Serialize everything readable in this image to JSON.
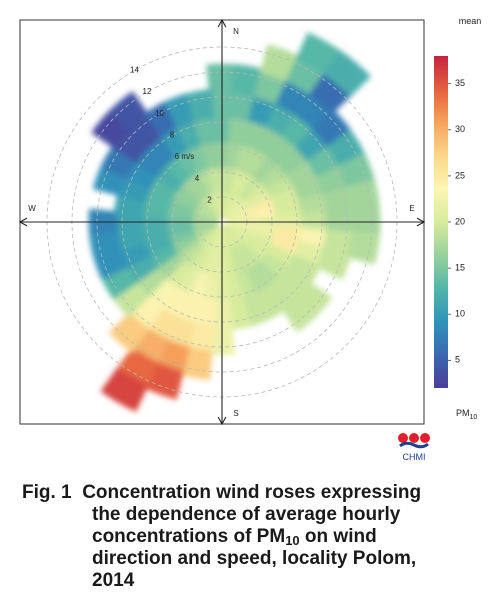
{
  "chart_data": {
    "type": "polar-heatmap",
    "directions": {
      "north": "N",
      "east": "E",
      "south": "S",
      "west": "W"
    },
    "radial_axis": {
      "ticks": [
        "2",
        "4",
        "6 m/s",
        "8",
        "10",
        "12",
        "14"
      ],
      "values": [
        2,
        4,
        6,
        8,
        10,
        12,
        14
      ],
      "max": 16
    },
    "colorbar": {
      "title": "mean",
      "label_main": "PM",
      "label_sub": "10",
      "ticks": [
        "5",
        "10",
        "15",
        "20",
        "25",
        "30",
        "35"
      ],
      "tick_values": [
        5,
        10,
        15,
        20,
        25,
        30,
        35
      ],
      "range": [
        2,
        38
      ],
      "colors": [
        "#4b3e98",
        "#3a68b0",
        "#2f93b9",
        "#53b6a8",
        "#98d19b",
        "#d7eb9c",
        "#fcf6b4",
        "#fbd68a",
        "#f6a35c",
        "#e5603f",
        "#c4243e"
      ]
    },
    "cells": [
      {
        "dir": 0,
        "r": 1.5,
        "v": 20
      },
      {
        "dir": 0,
        "r": 3.5,
        "v": 19
      },
      {
        "dir": 0,
        "r": 5.5,
        "v": 16
      },
      {
        "dir": 0,
        "r": 7.5,
        "v": 14
      },
      {
        "dir": 0,
        "r": 9.5,
        "v": 14
      },
      {
        "dir": 0,
        "r": 11.5,
        "v": 14
      },
      {
        "dir": 10,
        "r": 1.5,
        "v": 20
      },
      {
        "dir": 10,
        "r": 3.5,
        "v": 19
      },
      {
        "dir": 10,
        "r": 5.5,
        "v": 17
      },
      {
        "dir": 10,
        "r": 7.5,
        "v": 16
      },
      {
        "dir": 10,
        "r": 9.5,
        "v": 14
      },
      {
        "dir": 10,
        "r": 11.5,
        "v": 13
      },
      {
        "dir": 20,
        "r": 1.5,
        "v": 20
      },
      {
        "dir": 20,
        "r": 3.5,
        "v": 20
      },
      {
        "dir": 20,
        "r": 5.5,
        "v": 18
      },
      {
        "dir": 20,
        "r": 7.5,
        "v": 16
      },
      {
        "dir": 20,
        "r": 9.5,
        "v": 10
      },
      {
        "dir": 20,
        "r": 11.5,
        "v": 15
      },
      {
        "dir": 20,
        "r": 13.5,
        "v": 18
      },
      {
        "dir": 30,
        "r": 1.5,
        "v": 21
      },
      {
        "dir": 30,
        "r": 3.5,
        "v": 20
      },
      {
        "dir": 30,
        "r": 5.5,
        "v": 18
      },
      {
        "dir": 30,
        "r": 7.5,
        "v": 16
      },
      {
        "dir": 30,
        "r": 9.5,
        "v": 12
      },
      {
        "dir": 30,
        "r": 11.5,
        "v": 8
      },
      {
        "dir": 30,
        "r": 13.5,
        "v": 14
      },
      {
        "dir": 30,
        "r": 15.5,
        "v": 13
      },
      {
        "dir": 40,
        "r": 1.5,
        "v": 21
      },
      {
        "dir": 40,
        "r": 3.5,
        "v": 19
      },
      {
        "dir": 40,
        "r": 5.5,
        "v": 17
      },
      {
        "dir": 40,
        "r": 7.5,
        "v": 16
      },
      {
        "dir": 40,
        "r": 9.5,
        "v": 13
      },
      {
        "dir": 40,
        "r": 11.5,
        "v": 8
      },
      {
        "dir": 40,
        "r": 13.5,
        "v": 6
      },
      {
        "dir": 40,
        "r": 15.5,
        "v": 12
      },
      {
        "dir": 50,
        "r": 1.5,
        "v": 21
      },
      {
        "dir": 50,
        "r": 3.5,
        "v": 20
      },
      {
        "dir": 50,
        "r": 5.5,
        "v": 18
      },
      {
        "dir": 50,
        "r": 7.5,
        "v": 16
      },
      {
        "dir": 50,
        "r": 9.5,
        "v": 11
      },
      {
        "dir": 50,
        "r": 11.5,
        "v": 7
      },
      {
        "dir": 60,
        "r": 1.5,
        "v": 22
      },
      {
        "dir": 60,
        "r": 3.5,
        "v": 21
      },
      {
        "dir": 60,
        "r": 5.5,
        "v": 19
      },
      {
        "dir": 60,
        "r": 7.5,
        "v": 17
      },
      {
        "dir": 60,
        "r": 9.5,
        "v": 14
      },
      {
        "dir": 60,
        "r": 11.5,
        "v": 12
      },
      {
        "dir": 70,
        "r": 1.5,
        "v": 22
      },
      {
        "dir": 70,
        "r": 3.5,
        "v": 25
      },
      {
        "dir": 70,
        "r": 5.5,
        "v": 20
      },
      {
        "dir": 70,
        "r": 7.5,
        "v": 17
      },
      {
        "dir": 70,
        "r": 9.5,
        "v": 16
      },
      {
        "dir": 70,
        "r": 11.5,
        "v": 15
      },
      {
        "dir": 80,
        "r": 1.5,
        "v": 22
      },
      {
        "dir": 80,
        "r": 3.5,
        "v": 24
      },
      {
        "dir": 80,
        "r": 5.5,
        "v": 20
      },
      {
        "dir": 80,
        "r": 7.5,
        "v": 18
      },
      {
        "dir": 80,
        "r": 9.5,
        "v": 17
      },
      {
        "dir": 80,
        "r": 11.5,
        "v": 17
      },
      {
        "dir": 90,
        "r": 1.5,
        "v": 22
      },
      {
        "dir": 90,
        "r": 3.5,
        "v": 21
      },
      {
        "dir": 90,
        "r": 5.5,
        "v": 21
      },
      {
        "dir": 90,
        "r": 7.5,
        "v": 19
      },
      {
        "dir": 90,
        "r": 9.5,
        "v": 17
      },
      {
        "dir": 90,
        "r": 11.5,
        "v": 17
      },
      {
        "dir": 100,
        "r": 1.5,
        "v": 22
      },
      {
        "dir": 100,
        "r": 3.5,
        "v": 22
      },
      {
        "dir": 100,
        "r": 5.5,
        "v": 25
      },
      {
        "dir": 100,
        "r": 7.5,
        "v": 23
      },
      {
        "dir": 100,
        "r": 9.5,
        "v": 19
      },
      {
        "dir": 100,
        "r": 11.5,
        "v": 18
      },
      {
        "dir": 110,
        "r": 1.5,
        "v": 21
      },
      {
        "dir": 110,
        "r": 3.5,
        "v": 21
      },
      {
        "dir": 110,
        "r": 5.5,
        "v": 25
      },
      {
        "dir": 110,
        "r": 7.5,
        "v": 21
      },
      {
        "dir": 110,
        "r": 9.5,
        "v": 19
      },
      {
        "dir": 120,
        "r": 1.5,
        "v": 21
      },
      {
        "dir": 120,
        "r": 3.5,
        "v": 20
      },
      {
        "dir": 120,
        "r": 5.5,
        "v": 20
      },
      {
        "dir": 120,
        "r": 7.5,
        "v": 19
      },
      {
        "dir": 130,
        "r": 1.5,
        "v": 20
      },
      {
        "dir": 130,
        "r": 3.5,
        "v": 20
      },
      {
        "dir": 130,
        "r": 5.5,
        "v": 19
      },
      {
        "dir": 130,
        "r": 7.5,
        "v": 19
      },
      {
        "dir": 130,
        "r": 9.5,
        "v": 19
      },
      {
        "dir": 140,
        "r": 1.5,
        "v": 20
      },
      {
        "dir": 140,
        "r": 3.5,
        "v": 19
      },
      {
        "dir": 140,
        "r": 5.5,
        "v": 18
      },
      {
        "dir": 140,
        "r": 7.5,
        "v": 19
      },
      {
        "dir": 140,
        "r": 9.5,
        "v": 19
      },
      {
        "dir": 150,
        "r": 1.5,
        "v": 20
      },
      {
        "dir": 150,
        "r": 3.5,
        "v": 19
      },
      {
        "dir": 150,
        "r": 5.5,
        "v": 18
      },
      {
        "dir": 150,
        "r": 7.5,
        "v": 19
      },
      {
        "dir": 160,
        "r": 1.5,
        "v": 20
      },
      {
        "dir": 160,
        "r": 3.5,
        "v": 19
      },
      {
        "dir": 160,
        "r": 5.5,
        "v": 19
      },
      {
        "dir": 160,
        "r": 7.5,
        "v": 19
      },
      {
        "dir": 170,
        "r": 1.5,
        "v": 20
      },
      {
        "dir": 170,
        "r": 3.5,
        "v": 20
      },
      {
        "dir": 170,
        "r": 5.5,
        "v": 20
      },
      {
        "dir": 170,
        "r": 7.5,
        "v": 20
      },
      {
        "dir": 180,
        "r": 1.5,
        "v": 21
      },
      {
        "dir": 180,
        "r": 3.5,
        "v": 21
      },
      {
        "dir": 180,
        "r": 5.5,
        "v": 21
      },
      {
        "dir": 180,
        "r": 7.5,
        "v": 22
      },
      {
        "dir": 180,
        "r": 9.5,
        "v": 22
      },
      {
        "dir": 190,
        "r": 1.5,
        "v": 21
      },
      {
        "dir": 190,
        "r": 3.5,
        "v": 21
      },
      {
        "dir": 190,
        "r": 5.5,
        "v": 22
      },
      {
        "dir": 190,
        "r": 7.5,
        "v": 24
      },
      {
        "dir": 190,
        "r": 9.5,
        "v": 25
      },
      {
        "dir": 190,
        "r": 11.5,
        "v": 28
      },
      {
        "dir": 200,
        "r": 1.5,
        "v": 21
      },
      {
        "dir": 200,
        "r": 3.5,
        "v": 21
      },
      {
        "dir": 200,
        "r": 5.5,
        "v": 23
      },
      {
        "dir": 200,
        "r": 7.5,
        "v": 24
      },
      {
        "dir": 200,
        "r": 9.5,
        "v": 26
      },
      {
        "dir": 200,
        "r": 11.5,
        "v": 31
      },
      {
        "dir": 200,
        "r": 13.5,
        "v": 35
      },
      {
        "dir": 210,
        "r": 1.5,
        "v": 20
      },
      {
        "dir": 210,
        "r": 3.5,
        "v": 20
      },
      {
        "dir": 210,
        "r": 5.5,
        "v": 21
      },
      {
        "dir": 210,
        "r": 7.5,
        "v": 24
      },
      {
        "dir": 210,
        "r": 9.5,
        "v": 26
      },
      {
        "dir": 210,
        "r": 11.5,
        "v": 30
      },
      {
        "dir": 210,
        "r": 13.5,
        "v": 34
      },
      {
        "dir": 210,
        "r": 15.5,
        "v": 36
      },
      {
        "dir": 220,
        "r": 1.5,
        "v": 20
      },
      {
        "dir": 220,
        "r": 3.5,
        "v": 19
      },
      {
        "dir": 220,
        "r": 5.5,
        "v": 20
      },
      {
        "dir": 220,
        "r": 7.5,
        "v": 23
      },
      {
        "dir": 220,
        "r": 9.5,
        "v": 24
      },
      {
        "dir": 220,
        "r": 11.5,
        "v": 28
      },
      {
        "dir": 230,
        "r": 1.5,
        "v": 19
      },
      {
        "dir": 230,
        "r": 3.5,
        "v": 18
      },
      {
        "dir": 230,
        "r": 5.5,
        "v": 17
      },
      {
        "dir": 230,
        "r": 7.5,
        "v": 18
      },
      {
        "dir": 230,
        "r": 9.5,
        "v": 19
      },
      {
        "dir": 240,
        "r": 1.5,
        "v": 18
      },
      {
        "dir": 240,
        "r": 3.5,
        "v": 16
      },
      {
        "dir": 240,
        "r": 5.5,
        "v": 13
      },
      {
        "dir": 240,
        "r": 7.5,
        "v": 12
      },
      {
        "dir": 240,
        "r": 9.5,
        "v": 13
      },
      {
        "dir": 250,
        "r": 1.5,
        "v": 17
      },
      {
        "dir": 250,
        "r": 3.5,
        "v": 15
      },
      {
        "dir": 250,
        "r": 5.5,
        "v": 12
      },
      {
        "dir": 250,
        "r": 7.5,
        "v": 10
      },
      {
        "dir": 250,
        "r": 9.5,
        "v": 9
      },
      {
        "dir": 260,
        "r": 1.5,
        "v": 17
      },
      {
        "dir": 260,
        "r": 3.5,
        "v": 14
      },
      {
        "dir": 260,
        "r": 5.5,
        "v": 12
      },
      {
        "dir": 260,
        "r": 7.5,
        "v": 11
      },
      {
        "dir": 260,
        "r": 9.5,
        "v": 9
      },
      {
        "dir": 270,
        "r": 1.5,
        "v": 17
      },
      {
        "dir": 270,
        "r": 3.5,
        "v": 14
      },
      {
        "dir": 270,
        "r": 5.5,
        "v": 12
      },
      {
        "dir": 270,
        "r": 7.5,
        "v": 11
      },
      {
        "dir": 270,
        "r": 9.5,
        "v": 8
      },
      {
        "dir": 280,
        "r": 1.5,
        "v": 17
      },
      {
        "dir": 280,
        "r": 3.5,
        "v": 15
      },
      {
        "dir": 280,
        "r": 5.5,
        "v": 13
      },
      {
        "dir": 280,
        "r": 7.5,
        "v": 11
      },
      {
        "dir": 290,
        "r": 1.5,
        "v": 18
      },
      {
        "dir": 290,
        "r": 3.5,
        "v": 15
      },
      {
        "dir": 290,
        "r": 5.5,
        "v": 13
      },
      {
        "dir": 290,
        "r": 7.5,
        "v": 10
      },
      {
        "dir": 290,
        "r": 9.5,
        "v": 9
      },
      {
        "dir": 300,
        "r": 1.5,
        "v": 18
      },
      {
        "dir": 300,
        "r": 3.5,
        "v": 16
      },
      {
        "dir": 300,
        "r": 5.5,
        "v": 13
      },
      {
        "dir": 300,
        "r": 7.5,
        "v": 9
      },
      {
        "dir": 300,
        "r": 9.5,
        "v": 7
      },
      {
        "dir": 310,
        "r": 1.5,
        "v": 18
      },
      {
        "dir": 310,
        "r": 3.5,
        "v": 16
      },
      {
        "dir": 310,
        "r": 5.5,
        "v": 12
      },
      {
        "dir": 310,
        "r": 7.5,
        "v": 8
      },
      {
        "dir": 310,
        "r": 9.5,
        "v": 4
      },
      {
        "dir": 310,
        "r": 11.5,
        "v": 3
      },
      {
        "dir": 320,
        "r": 1.5,
        "v": 19
      },
      {
        "dir": 320,
        "r": 3.5,
        "v": 17
      },
      {
        "dir": 320,
        "r": 5.5,
        "v": 13
      },
      {
        "dir": 320,
        "r": 7.5,
        "v": 8
      },
      {
        "dir": 320,
        "r": 9.5,
        "v": 4
      },
      {
        "dir": 320,
        "r": 11.5,
        "v": 4
      },
      {
        "dir": 330,
        "r": 1.5,
        "v": 19
      },
      {
        "dir": 330,
        "r": 3.5,
        "v": 17
      },
      {
        "dir": 330,
        "r": 5.5,
        "v": 14
      },
      {
        "dir": 330,
        "r": 7.5,
        "v": 10
      },
      {
        "dir": 330,
        "r": 9.5,
        "v": 6
      },
      {
        "dir": 340,
        "r": 1.5,
        "v": 20
      },
      {
        "dir": 340,
        "r": 3.5,
        "v": 18
      },
      {
        "dir": 340,
        "r": 5.5,
        "v": 15
      },
      {
        "dir": 340,
        "r": 7.5,
        "v": 12
      },
      {
        "dir": 340,
        "r": 9.5,
        "v": 10
      },
      {
        "dir": 350,
        "r": 1.5,
        "v": 20
      },
      {
        "dir": 350,
        "r": 3.5,
        "v": 19
      },
      {
        "dir": 350,
        "r": 5.5,
        "v": 16
      },
      {
        "dir": 350,
        "r": 7.5,
        "v": 14
      },
      {
        "dir": 350,
        "r": 9.5,
        "v": 12
      }
    ]
  },
  "caption": {
    "prefix": "Fig. 1",
    "line1": "Concentration wind roses expressing",
    "line2": "the dependence of average hourly",
    "line3_pre": "concentrations of PM",
    "line3_sub": "10",
    "line3_post": " on wind",
    "line4": "direction and speed, locality Polom,",
    "line5": "2014"
  },
  "logo": {
    "text": "CHMI",
    "colors": [
      "#e3202a",
      "#1f3f8f"
    ]
  }
}
